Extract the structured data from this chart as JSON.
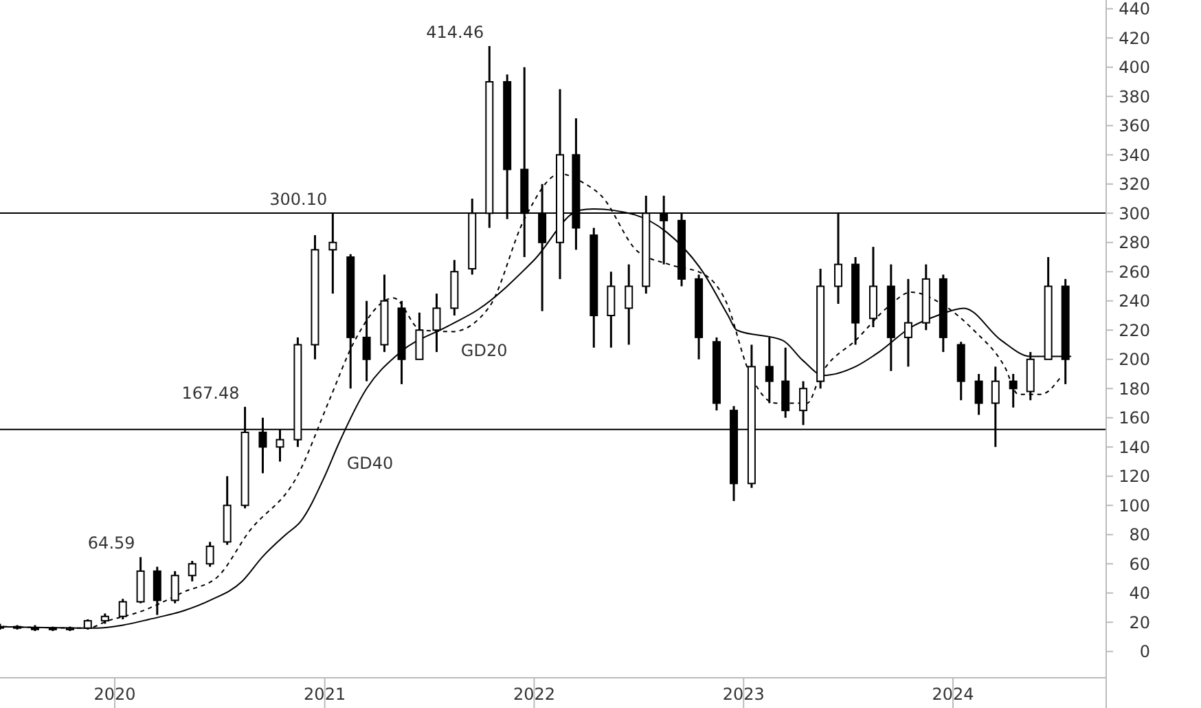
{
  "chart_data": {
    "type": "candlestick",
    "color": "#000000",
    "x": [
      "2019-06-15",
      "2019-07-15",
      "2019-08-15",
      "2019-09-15",
      "2019-10-15",
      "2019-11-15",
      "2019-12-15",
      "2020-01-15",
      "2020-02-15",
      "2020-03-15",
      "2020-04-15",
      "2020-05-15",
      "2020-06-15",
      "2020-07-15",
      "2020-08-15",
      "2020-09-15",
      "2020-10-15",
      "2020-11-15",
      "2020-12-15",
      "2021-01-15",
      "2021-02-15",
      "2021-03-15",
      "2021-04-15",
      "2021-05-15",
      "2021-06-15",
      "2021-07-15",
      "2021-08-15",
      "2021-09-15",
      "2021-10-15",
      "2021-11-15",
      "2021-12-15",
      "2022-01-15",
      "2022-02-15",
      "2022-03-15",
      "2022-04-15",
      "2022-05-15",
      "2022-06-15",
      "2022-07-15",
      "2022-08-15",
      "2022-09-15",
      "2022-10-15",
      "2022-11-15",
      "2022-12-15",
      "2023-01-15",
      "2023-02-15",
      "2023-03-15",
      "2023-04-15",
      "2023-05-15",
      "2023-06-15",
      "2023-07-15",
      "2023-08-15",
      "2023-09-15",
      "2023-10-15",
      "2023-11-15",
      "2023-12-15",
      "2024-01-15",
      "2024-02-15",
      "2024-03-15",
      "2024-04-15",
      "2024-05-15",
      "2024-06-15",
      "2024-07-15"
    ],
    "ohlc": [
      [
        17,
        19,
        15,
        17
      ],
      [
        17,
        18,
        15,
        16
      ],
      [
        16,
        18,
        14,
        16
      ],
      [
        16,
        17,
        14,
        15
      ],
      [
        15,
        17,
        14,
        16
      ],
      [
        16,
        22,
        15,
        21
      ],
      [
        21,
        26,
        19,
        24
      ],
      [
        24,
        36,
        22,
        34
      ],
      [
        34,
        64.59,
        33,
        55
      ],
      [
        55,
        58,
        25,
        35
      ],
      [
        35,
        55,
        33,
        52
      ],
      [
        52,
        62,
        48,
        60
      ],
      [
        60,
        75,
        58,
        72
      ],
      [
        75,
        120,
        73,
        100
      ],
      [
        100,
        167.48,
        98,
        150
      ],
      [
        150,
        160,
        122,
        140
      ],
      [
        140,
        152,
        130,
        145
      ],
      [
        145,
        215,
        140,
        210
      ],
      [
        210,
        285,
        200,
        275
      ],
      [
        275,
        300.1,
        245,
        280
      ],
      [
        270,
        272,
        180,
        215
      ],
      [
        215,
        240,
        185,
        200
      ],
      [
        210,
        258,
        205,
        240
      ],
      [
        235,
        240,
        183,
        200
      ],
      [
        200,
        232,
        200,
        220
      ],
      [
        220,
        245,
        205,
        235
      ],
      [
        235,
        268,
        230,
        260
      ],
      [
        262,
        310,
        258,
        300
      ],
      [
        300,
        414.46,
        290,
        390
      ],
      [
        390,
        395,
        296,
        330
      ],
      [
        330,
        400,
        270,
        300
      ],
      [
        300,
        320,
        233,
        280
      ],
      [
        280,
        385,
        255,
        340
      ],
      [
        340,
        365,
        275,
        290
      ],
      [
        285,
        290,
        208,
        230
      ],
      [
        230,
        260,
        208,
        250
      ],
      [
        235,
        265,
        210,
        250
      ],
      [
        250,
        312,
        245,
        300
      ],
      [
        300,
        312,
        265,
        295
      ],
      [
        295,
        300,
        250,
        255
      ],
      [
        255,
        258,
        200,
        215
      ],
      [
        212,
        215,
        165,
        170
      ],
      [
        165,
        168,
        103,
        115
      ],
      [
        115,
        210,
        112,
        195
      ],
      [
        195,
        215,
        170,
        185
      ],
      [
        185,
        208,
        160,
        165
      ],
      [
        165,
        185,
        155,
        180
      ],
      [
        185,
        262,
        180,
        250
      ],
      [
        250,
        300,
        238,
        265
      ],
      [
        265,
        270,
        210,
        225
      ],
      [
        228,
        277,
        222,
        250
      ],
      [
        250,
        265,
        192,
        215
      ],
      [
        215,
        255,
        195,
        225
      ],
      [
        225,
        265,
        220,
        255
      ],
      [
        255,
        258,
        205,
        215
      ],
      [
        210,
        212,
        172,
        185
      ],
      [
        185,
        190,
        162,
        170
      ],
      [
        170,
        195,
        140,
        185
      ],
      [
        185,
        190,
        167,
        180
      ],
      [
        178,
        205,
        172,
        200
      ],
      [
        200,
        270,
        200,
        250
      ],
      [
        250,
        255,
        183,
        200
      ]
    ],
    "series": [
      {
        "name": "GD20",
        "type": "line",
        "color": "#000000",
        "line_style": "dashed",
        "x": [
          "2019-06-20",
          "2019-11-15",
          "2019-12-20",
          "2020-02-13",
          "2020-05-02",
          "2020-06-28",
          "2020-08-22",
          "2020-11-14",
          "2021-01-10",
          "2021-02-20",
          "2021-05-01",
          "2021-06-18",
          "2021-08-12",
          "2021-10-15",
          "2021-12-15",
          "2022-02-15",
          "2022-03-27",
          "2022-04-28",
          "2022-06-30",
          "2022-08-24",
          "2022-10-25",
          "2022-12-02",
          "2023-01-10",
          "2023-02-26",
          "2023-04-22",
          "2023-05-15",
          "2023-07-18",
          "2023-09-10",
          "2023-10-20",
          "2023-12-12",
          "2024-02-06",
          "2024-03-31",
          "2024-04-24",
          "2024-06-02",
          "2024-07-09"
        ],
        "values": [
          17,
          16,
          21,
          27,
          41,
          51,
          82,
          120,
          173,
          211,
          242,
          220,
          219,
          236,
          296,
          327,
          321,
          312,
          274,
          265,
          258,
          239,
          192,
          170,
          170,
          189,
          214,
          236,
          246,
          238,
          220,
          195,
          176,
          176,
          189
        ]
      },
      {
        "name": "GD40",
        "type": "line",
        "color": "#000000",
        "line_style": "solid",
        "x": [
          "2019-06-20",
          "2019-12-01",
          "2020-01-15",
          "2020-03-01",
          "2020-05-01",
          "2020-06-15",
          "2020-08-10",
          "2020-09-15",
          "2020-10-25",
          "2020-11-20",
          "2021-01-01",
          "2021-01-25",
          "2021-03-15",
          "2021-05-10",
          "2021-08-05",
          "2021-09-25",
          "2022-01-01",
          "2022-03-20",
          "2022-04-15",
          "2022-06-25",
          "2022-08-20",
          "2022-10-20",
          "2022-12-05",
          "2022-12-20",
          "2023-03-10",
          "2023-04-15",
          "2023-05-20",
          "2023-07-15",
          "2023-08-25",
          "2023-10-20",
          "2023-12-05",
          "2024-01-20",
          "2024-03-25",
          "2024-05-15",
          "2024-07-25"
        ],
        "values": [
          17,
          16,
          18,
          22,
          28,
          35,
          48,
          65,
          80,
          89,
          120,
          142,
          180,
          204,
          223,
          234,
          268,
          302,
          303,
          299,
          287,
          261,
          230,
          220,
          213,
          199,
          189,
          195,
          205,
          222,
          230,
          235,
          213,
          202,
          202
        ]
      }
    ],
    "annotations": [
      {
        "text": "414.46",
        "x": "2021-10-15",
        "y": 414.46
      },
      {
        "text": "300.10",
        "x": "2021-01-15",
        "y": 300.1
      },
      {
        "text": "167.48",
        "x": "2020-08-15",
        "y": 167.48
      },
      {
        "text": "64.59",
        "x": "2020-02-15",
        "y": 64.59
      }
    ],
    "ref_lines": [
      {
        "axis": "y",
        "value": 300.1
      },
      {
        "axis": "y",
        "value": 152
      }
    ],
    "xlim": [
      "2019-06-15",
      "2024-09-24"
    ],
    "xticks": [
      {
        "value": "2020-01-01",
        "label": "2020"
      },
      {
        "value": "2021-01-01",
        "label": "2021"
      },
      {
        "value": "2022-01-01",
        "label": "2022"
      },
      {
        "value": "2023-01-01",
        "label": "2023"
      },
      {
        "value": "2024-01-01",
        "label": "2024"
      }
    ],
    "ylim": [
      -18,
      446
    ],
    "yticks": [
      0,
      20,
      40,
      60,
      80,
      100,
      120,
      140,
      160,
      180,
      200,
      220,
      240,
      260,
      280,
      300,
      320,
      340,
      360,
      380,
      400,
      420,
      440
    ]
  }
}
